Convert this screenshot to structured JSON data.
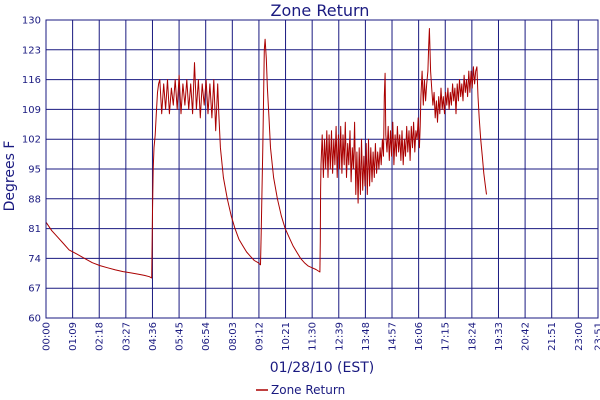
{
  "chart_data": {
    "type": "line",
    "title": "Zone Return",
    "xlabel": "01/28/10 (EST)",
    "ylabel": "Degrees F",
    "ylim": [
      60,
      130
    ],
    "y_ticks": [
      "60",
      "67",
      "74",
      "81",
      "88",
      "95",
      "102",
      "109",
      "116",
      "123",
      "130"
    ],
    "x_ticks": [
      "00:00",
      "01:09",
      "02:18",
      "03:27",
      "04:36",
      "05:45",
      "06:54",
      "08:03",
      "09:12",
      "10:21",
      "11:30",
      "12:39",
      "13:48",
      "14:57",
      "16:06",
      "17:15",
      "18:24",
      "19:33",
      "20:42",
      "21:51",
      "23:00",
      "23:51"
    ],
    "x_unit": "minutes since 00:00",
    "grid": true,
    "legend_position": "bottom-center",
    "line_color": "#aa0000",
    "grid_color": "#1a1a80",
    "series": [
      {
        "name": "Zone Return",
        "points": [
          [
            0,
            82.5
          ],
          [
            15,
            80.5
          ],
          [
            30,
            79
          ],
          [
            45,
            77.5
          ],
          [
            60,
            76
          ],
          [
            80,
            75
          ],
          [
            100,
            74
          ],
          [
            120,
            73
          ],
          [
            140,
            72.3
          ],
          [
            160,
            71.8
          ],
          [
            180,
            71.3
          ],
          [
            200,
            70.9
          ],
          [
            220,
            70.6
          ],
          [
            240,
            70.3
          ],
          [
            255,
            70
          ],
          [
            268,
            69.7
          ],
          [
            274,
            69.4
          ],
          [
            276,
            85
          ],
          [
            278,
            95
          ],
          [
            280,
            100
          ],
          [
            283,
            103
          ],
          [
            286,
            108
          ],
          [
            289,
            113
          ],
          [
            292,
            115
          ],
          [
            295,
            116
          ],
          [
            300,
            108
          ],
          [
            305,
            115
          ],
          [
            310,
            109
          ],
          [
            315,
            116
          ],
          [
            320,
            108
          ],
          [
            325,
            114
          ],
          [
            330,
            110
          ],
          [
            335,
            116
          ],
          [
            340,
            109
          ],
          [
            345,
            117
          ],
          [
            350,
            108
          ],
          [
            355,
            115
          ],
          [
            360,
            110
          ],
          [
            365,
            116
          ],
          [
            370,
            109
          ],
          [
            375,
            115
          ],
          [
            380,
            108
          ],
          [
            385,
            120
          ],
          [
            390,
            109
          ],
          [
            395,
            116
          ],
          [
            400,
            107
          ],
          [
            405,
            115
          ],
          [
            410,
            110
          ],
          [
            415,
            116
          ],
          [
            420,
            108
          ],
          [
            425,
            115
          ],
          [
            430,
            107
          ],
          [
            435,
            116
          ],
          [
            440,
            104
          ],
          [
            445,
            115
          ],
          [
            448,
            108
          ],
          [
            452,
            100
          ],
          [
            460,
            93
          ],
          [
            470,
            88
          ],
          [
            480,
            84
          ],
          [
            490,
            81
          ],
          [
            500,
            78.5
          ],
          [
            510,
            77
          ],
          [
            520,
            75.5
          ],
          [
            530,
            74.5
          ],
          [
            540,
            73.5
          ],
          [
            550,
            73
          ],
          [
            556,
            72.5
          ],
          [
            558,
            80
          ],
          [
            560,
            90
          ],
          [
            562,
            100
          ],
          [
            564,
            112
          ],
          [
            566,
            123
          ],
          [
            568,
            125.5
          ],
          [
            571,
            121
          ],
          [
            574,
            114
          ],
          [
            578,
            107
          ],
          [
            582,
            100
          ],
          [
            590,
            93
          ],
          [
            600,
            88
          ],
          [
            610,
            84
          ],
          [
            620,
            81
          ],
          [
            630,
            79
          ],
          [
            640,
            77
          ],
          [
            650,
            75.5
          ],
          [
            660,
            74
          ],
          [
            670,
            73
          ],
          [
            680,
            72.2
          ],
          [
            690,
            71.8
          ],
          [
            700,
            71.4
          ],
          [
            710,
            70.8
          ],
          [
            711,
            78
          ],
          [
            712,
            90
          ],
          [
            713,
            96
          ],
          [
            716,
            103
          ],
          [
            719,
            93
          ],
          [
            722,
            102
          ],
          [
            725,
            95
          ],
          [
            728,
            104
          ],
          [
            731,
            93
          ],
          [
            734,
            103
          ],
          [
            737,
            95
          ],
          [
            740,
            104
          ],
          [
            743,
            94
          ],
          [
            746,
            102
          ],
          [
            749,
            96
          ],
          [
            752,
            105
          ],
          [
            755,
            93
          ],
          [
            758,
            103
          ],
          [
            761,
            95
          ],
          [
            764,
            105
          ],
          [
            767,
            94
          ],
          [
            770,
            103
          ],
          [
            773,
            96
          ],
          [
            776,
            106
          ],
          [
            779,
            93
          ],
          [
            782,
            101
          ],
          [
            785,
            96
          ],
          [
            788,
            104
          ],
          [
            791,
            92
          ],
          [
            794,
            100
          ],
          [
            797,
            95
          ],
          [
            800,
            106
          ],
          [
            803,
            89
          ],
          [
            806,
            99
          ],
          [
            809,
            87
          ],
          [
            812,
            100
          ],
          [
            815,
            89
          ],
          [
            818,
            102
          ],
          [
            821,
            90
          ],
          [
            824,
            98
          ],
          [
            827,
            91
          ],
          [
            830,
            101
          ],
          [
            833,
            89
          ],
          [
            836,
            102
          ],
          [
            839,
            91
          ],
          [
            842,
            100
          ],
          [
            845,
            92
          ],
          [
            848,
            99
          ],
          [
            851,
            93
          ],
          [
            854,
            101
          ],
          [
            857,
            94
          ],
          [
            860,
            99
          ],
          [
            863,
            95
          ],
          [
            866,
            100
          ],
          [
            869,
            96
          ],
          [
            872,
            102
          ],
          [
            875,
            98
          ],
          [
            877,
            112
          ],
          [
            879,
            117.5
          ],
          [
            881,
            103
          ],
          [
            884,
            99
          ],
          [
            887,
            105
          ],
          [
            890,
            97
          ],
          [
            893,
            104
          ],
          [
            896,
            98
          ],
          [
            899,
            106
          ],
          [
            902,
            96
          ],
          [
            905,
            103
          ],
          [
            908,
            98
          ],
          [
            911,
            105
          ],
          [
            914,
            99
          ],
          [
            917,
            103
          ],
          [
            920,
            97
          ],
          [
            923,
            104
          ],
          [
            926,
            96
          ],
          [
            929,
            102
          ],
          [
            932,
            98
          ],
          [
            935,
            105
          ],
          [
            938,
            99
          ],
          [
            941,
            104
          ],
          [
            944,
            97
          ],
          [
            947,
            105
          ],
          [
            950,
            100
          ],
          [
            953,
            106
          ],
          [
            956,
            99
          ],
          [
            959,
            104
          ],
          [
            962,
            102
          ],
          [
            965,
            107
          ],
          [
            968,
            100
          ],
          [
            970,
            105
          ],
          [
            972,
            112
          ],
          [
            975,
            118
          ],
          [
            978,
            110
          ],
          [
            981,
            116
          ],
          [
            984,
            111
          ],
          [
            987,
            115
          ],
          [
            990,
            118
          ],
          [
            992,
            124
          ],
          [
            994,
            128
          ],
          [
            997,
            118
          ],
          [
            1000,
            114
          ],
          [
            1003,
            110
          ],
          [
            1006,
            113
          ],
          [
            1009,
            107
          ],
          [
            1012,
            111
          ],
          [
            1015,
            106
          ],
          [
            1018,
            112
          ],
          [
            1021,
            108
          ],
          [
            1024,
            114
          ],
          [
            1027,
            109
          ],
          [
            1030,
            112
          ],
          [
            1033,
            108
          ],
          [
            1036,
            113
          ],
          [
            1039,
            110
          ],
          [
            1042,
            114
          ],
          [
            1045,
            109
          ],
          [
            1048,
            113
          ],
          [
            1051,
            110
          ],
          [
            1054,
            115
          ],
          [
            1057,
            111
          ],
          [
            1060,
            114
          ],
          [
            1063,
            108
          ],
          [
            1066,
            115
          ],
          [
            1069,
            111
          ],
          [
            1072,
            116
          ],
          [
            1075,
            112
          ],
          [
            1078,
            115
          ],
          [
            1081,
            111
          ],
          [
            1084,
            117
          ],
          [
            1087,
            113
          ],
          [
            1090,
            116
          ],
          [
            1093,
            112
          ],
          [
            1096,
            118
          ],
          [
            1099,
            113
          ],
          [
            1102,
            118
          ],
          [
            1105,
            114
          ],
          [
            1108,
            119
          ],
          [
            1111,
            115
          ],
          [
            1114,
            118
          ],
          [
            1117,
            119
          ],
          [
            1120,
            112
          ],
          [
            1123,
            107
          ],
          [
            1127,
            102
          ],
          [
            1131,
            98
          ],
          [
            1135,
            94
          ],
          [
            1139,
            91
          ],
          [
            1142,
            89
          ]
        ]
      }
    ]
  }
}
